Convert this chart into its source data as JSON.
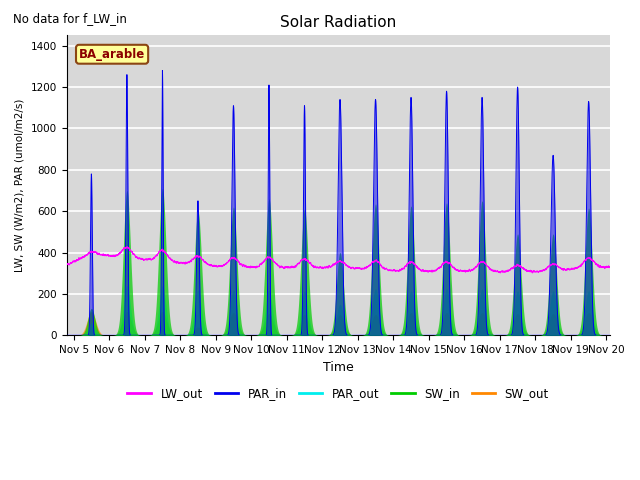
{
  "title": "Solar Radiation",
  "note": "No data for f_LW_in",
  "xlabel": "Time",
  "ylabel": "LW, SW (W/m2), PAR (umol/m2/s)",
  "legend_label": "BA_arable",
  "ylim": [
    0,
    1450
  ],
  "xlim_start": 4.8,
  "xlim_end": 20.1,
  "x_ticks": [
    5,
    6,
    7,
    8,
    9,
    10,
    11,
    12,
    13,
    14,
    15,
    16,
    17,
    18,
    19,
    20
  ],
  "x_tick_labels": [
    "Nov 5",
    "Nov 6",
    "Nov 7",
    "Nov 8",
    "Nov 9",
    "Nov 10",
    "Nov 11",
    "Nov 12",
    "Nov 13",
    "Nov 14",
    "Nov 15",
    "Nov 16",
    "Nov 17",
    "Nov 18",
    "Nov 19",
    "Nov 20"
  ],
  "colors": {
    "LW_out": "#ff00ff",
    "PAR_in": "#0000ee",
    "PAR_out": "#00eeee",
    "SW_in": "#00cc00",
    "SW_out": "#ff8800"
  },
  "background_color": "#d8d8d8",
  "grid_color": "#ffffff",
  "par_in_peaks": [
    780,
    1260,
    1280,
    650,
    1110,
    1210,
    1110,
    1140,
    1140,
    1150,
    1180,
    1150,
    1200,
    870,
    1130
  ],
  "sw_in_peaks": [
    130,
    700,
    710,
    600,
    620,
    660,
    610,
    400,
    635,
    625,
    640,
    650,
    490,
    490,
    615
  ],
  "sw_out_peaks": [
    115,
    115,
    115,
    40,
    110,
    105,
    100,
    100,
    100,
    110,
    110,
    110,
    105,
    105,
    110
  ],
  "par_out_peaks": [
    60,
    240,
    240,
    220,
    220,
    220,
    215,
    150,
    225,
    215,
    225,
    225,
    215,
    215,
    215
  ],
  "par_in_width": [
    0.025,
    0.025,
    0.02,
    0.035,
    0.045,
    0.022,
    0.028,
    0.055,
    0.055,
    0.05,
    0.048,
    0.05,
    0.048,
    0.06,
    0.055
  ],
  "lw_base_x": [
    4.8,
    5.5,
    6.5,
    7.5,
    8.5,
    9.5,
    10.5,
    11.5,
    12.5,
    13.5,
    14.5,
    15.5,
    16.5,
    17.5,
    18.5,
    19.5,
    20.1
  ],
  "lw_base_y": [
    340,
    395,
    375,
    360,
    340,
    330,
    330,
    325,
    330,
    315,
    310,
    310,
    310,
    305,
    310,
    330,
    330
  ]
}
